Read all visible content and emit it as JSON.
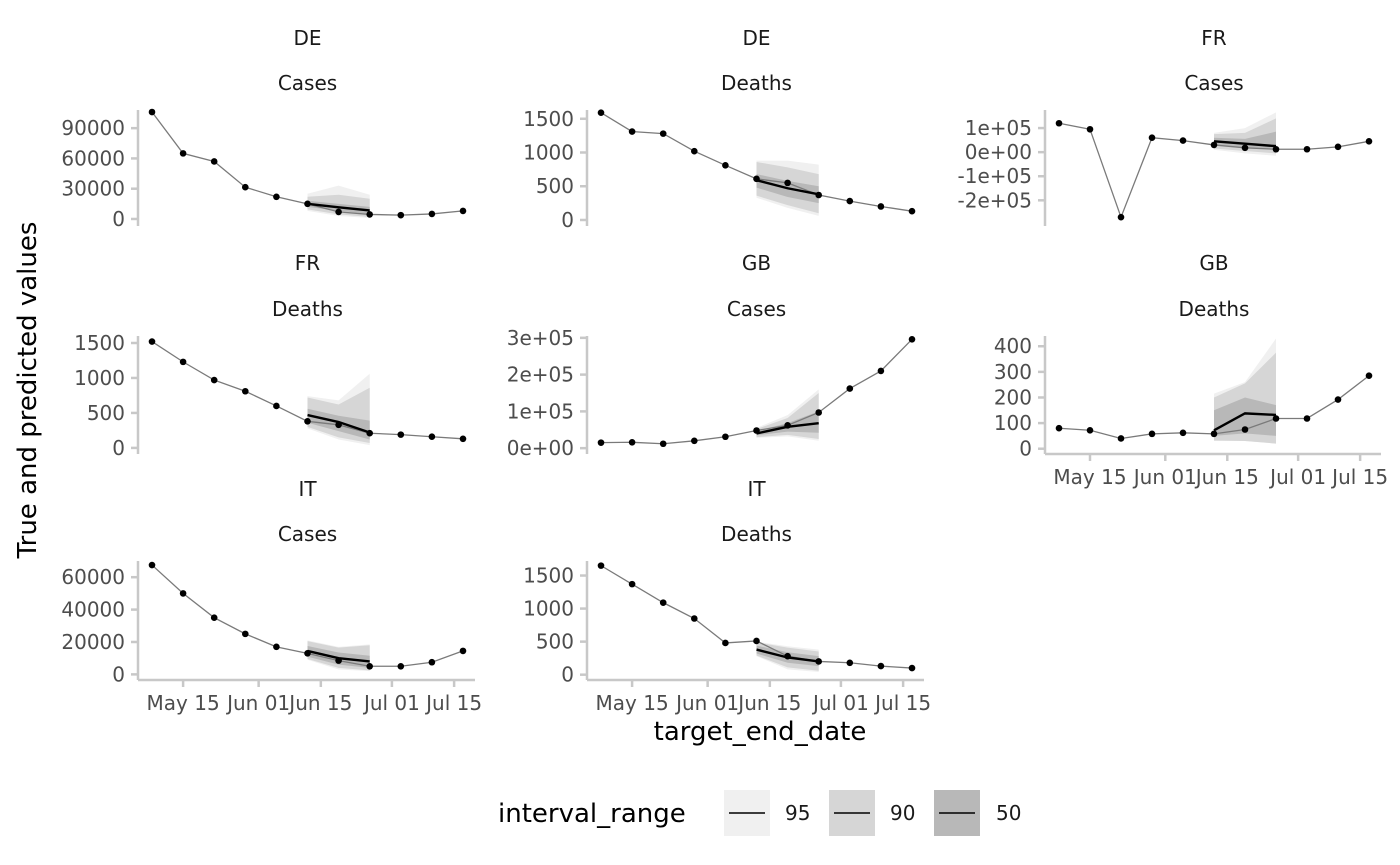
{
  "chart_data": {
    "type": "line",
    "xlabel": "target_end_date",
    "ylabel": "True and predicted values",
    "x_tick_labels": [
      "May 15",
      "Jun 01",
      "Jun 15",
      "Jul 01",
      "Jul 15"
    ],
    "x_dates": [
      "2021-05-08",
      "2021-05-15",
      "2021-05-22",
      "2021-05-29",
      "2021-06-05",
      "2021-06-12",
      "2021-06-19",
      "2021-06-26",
      "2021-07-03",
      "2021-07-10",
      "2021-07-17"
    ],
    "forecast_dates": [
      "2021-06-12",
      "2021-06-19",
      "2021-06-26"
    ],
    "legend": {
      "title": "interval_range",
      "entries": [
        {
          "label": "95",
          "fill": "#f0f0f0"
        },
        {
          "label": "90",
          "fill": "#d6d6d6"
        },
        {
          "label": "50",
          "fill": "#b8b8b8"
        }
      ]
    },
    "colors": {
      "observed_line": "#7a7a7a",
      "observed_point": "#000000",
      "median_line": "#000000",
      "band95": "#f0f0f0",
      "band90": "#d6d6d6",
      "band50": "#b8b8b8"
    },
    "panels": [
      {
        "location": "DE",
        "target": "Cases",
        "ylim": [
          -3000,
          108000
        ],
        "yticks": [
          0,
          30000,
          60000,
          90000
        ],
        "ytick_labels": [
          "0",
          "30000",
          "60000",
          "90000"
        ],
        "observed": [
          106000,
          65000,
          57000,
          31500,
          22000,
          15000,
          7000,
          4500,
          3800,
          5000,
          8000
        ],
        "median": [
          15000,
          11500,
          8500
        ],
        "band95": [
          [
            8000,
            25000
          ],
          [
            3000,
            33000
          ],
          [
            1000,
            24000
          ]
        ],
        "band90": [
          [
            9500,
            22000
          ],
          [
            4500,
            24000
          ],
          [
            2000,
            20000
          ]
        ],
        "band50": [
          [
            12000,
            18000
          ],
          [
            8000,
            15000
          ],
          [
            5000,
            12000
          ]
        ],
        "show_x_ticks": false
      },
      {
        "location": "DE",
        "target": "Deaths",
        "ylim": [
          -30,
          1630
        ],
        "yticks": [
          0,
          500,
          1000,
          1500
        ],
        "ytick_labels": [
          "0",
          "500",
          "1000",
          "1500"
        ],
        "observed": [
          1590,
          1310,
          1280,
          1020,
          810,
          610,
          550,
          370,
          280,
          200,
          130
        ],
        "median": [
          590,
          470,
          380
        ],
        "band95": [
          [
            330,
            880
          ],
          [
            180,
            880
          ],
          [
            60,
            820
          ]
        ],
        "band90": [
          [
            360,
            860
          ],
          [
            220,
            780
          ],
          [
            100,
            680
          ]
        ],
        "band50": [
          [
            480,
            680
          ],
          [
            340,
            580
          ],
          [
            250,
            500
          ]
        ],
        "show_x_ticks": false
      },
      {
        "location": "FR",
        "target": "Cases",
        "ylim": [
          -290000,
          175000
        ],
        "yticks": [
          -200000,
          -100000,
          0,
          100000
        ],
        "ytick_labels": [
          "-2e+05",
          "-1e+05",
          "0e+00",
          "1e+05"
        ],
        "observed": [
          120000,
          95000,
          -270000,
          60000,
          48000,
          30000,
          18000,
          12000,
          12000,
          22000,
          45000
        ],
        "median": [
          45000,
          35000,
          25000
        ],
        "band95": [
          [
            10000,
            80000
          ],
          [
            -5000,
            100000
          ],
          [
            -15000,
            165000
          ]
        ],
        "band90": [
          [
            15000,
            75000
          ],
          [
            5000,
            80000
          ],
          [
            -5000,
            140000
          ]
        ],
        "band50": [
          [
            30000,
            60000
          ],
          [
            20000,
            55000
          ],
          [
            10000,
            85000
          ]
        ],
        "show_x_ticks": false
      },
      {
        "location": "FR",
        "target": "Deaths",
        "ylim": [
          -30,
          1600
        ],
        "yticks": [
          0,
          500,
          1000,
          1500
        ],
        "ytick_labels": [
          "0",
          "500",
          "1000",
          "1500"
        ],
        "observed": [
          1520,
          1230,
          970,
          810,
          600,
          380,
          330,
          210,
          190,
          160,
          130
        ],
        "median": [
          470,
          370,
          220
        ],
        "band95": [
          [
            280,
            740
          ],
          [
            120,
            680
          ],
          [
            40,
            1060
          ]
        ],
        "band90": [
          [
            300,
            720
          ],
          [
            150,
            620
          ],
          [
            70,
            860
          ]
        ],
        "band50": [
          [
            360,
            560
          ],
          [
            240,
            460
          ],
          [
            120,
            390
          ]
        ],
        "show_x_ticks": false
      },
      {
        "location": "GB",
        "target": "Cases",
        "ylim": [
          -5000,
          305000
        ],
        "yticks": [
          0,
          100000,
          200000,
          300000
        ],
        "ytick_labels": [
          "0e+00",
          "1e+05",
          "2e+05",
          "3e+05"
        ],
        "observed": [
          15000,
          16000,
          12000,
          20000,
          31000,
          48000,
          62000,
          97000,
          162000,
          210000,
          296000
        ],
        "median": [
          40000,
          58000,
          68000
        ],
        "band95": [
          [
            28000,
            55000
          ],
          [
            32000,
            90000
          ],
          [
            20000,
            160000
          ]
        ],
        "band90": [
          [
            30000,
            52000
          ],
          [
            36000,
            82000
          ],
          [
            25000,
            150000
          ]
        ],
        "band50": [
          [
            35000,
            47000
          ],
          [
            45000,
            68000
          ],
          [
            42000,
            100000
          ]
        ],
        "show_x_ticks": false
      },
      {
        "location": "GB",
        "target": "Deaths",
        "ylim": [
          -5,
          440
        ],
        "yticks": [
          0,
          100,
          200,
          300,
          400
        ],
        "ytick_labels": [
          "0",
          "100",
          "200",
          "300",
          "400"
        ],
        "observed": [
          80,
          72,
          40,
          58,
          62,
          58,
          75,
          118,
          118,
          192,
          285
        ],
        "median": [
          72,
          138,
          132
        ],
        "band95": [
          [
            30,
            215
          ],
          [
            30,
            260
          ],
          [
            20,
            430
          ]
        ],
        "band90": [
          [
            32,
            200
          ],
          [
            30,
            255
          ],
          [
            20,
            375
          ]
        ],
        "band50": [
          [
            50,
            150
          ],
          [
            60,
            200
          ],
          [
            50,
            170
          ]
        ],
        "show_x_ticks": true
      },
      {
        "location": "IT",
        "target": "Cases",
        "ylim": [
          -1000,
          70000
        ],
        "yticks": [
          0,
          20000,
          40000,
          60000
        ],
        "ytick_labels": [
          "0",
          "20000",
          "40000",
          "60000"
        ],
        "observed": [
          67500,
          50000,
          35000,
          25000,
          17000,
          13000,
          8500,
          5000,
          5000,
          7500,
          14500
        ],
        "median": [
          14500,
          10000,
          8000
        ],
        "band95": [
          [
            9000,
            21000
          ],
          [
            3000,
            17000
          ],
          [
            2000,
            18500
          ]
        ],
        "band90": [
          [
            9500,
            20500
          ],
          [
            4000,
            16500
          ],
          [
            2500,
            18000
          ]
        ],
        "band50": [
          [
            11000,
            17500
          ],
          [
            6000,
            13500
          ],
          [
            4000,
            11500
          ]
        ],
        "show_x_ticks": true
      },
      {
        "location": "IT",
        "target": "Deaths",
        "ylim": [
          -20,
          1720
        ],
        "yticks": [
          0,
          500,
          1000,
          1500
        ],
        "ytick_labels": [
          "0",
          "500",
          "1000",
          "1500"
        ],
        "observed": [
          1650,
          1370,
          1090,
          850,
          480,
          510,
          280,
          200,
          180,
          130,
          100
        ],
        "median": [
          380,
          260,
          200
        ],
        "band95": [
          [
            280,
            500
          ],
          [
            80,
            430
          ],
          [
            40,
            380
          ]
        ],
        "band90": [
          [
            290,
            490
          ],
          [
            110,
            410
          ],
          [
            60,
            350
          ]
        ],
        "band50": [
          [
            320,
            440
          ],
          [
            180,
            340
          ],
          [
            130,
            280
          ]
        ],
        "show_x_ticks": true
      }
    ]
  }
}
